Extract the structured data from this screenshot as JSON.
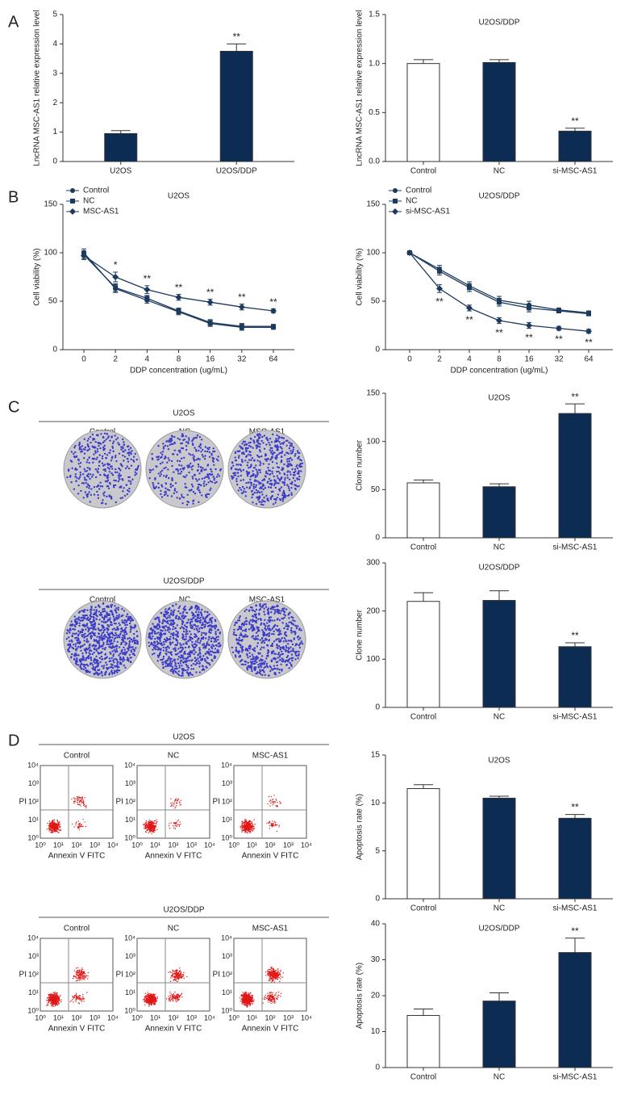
{
  "panel_labels": [
    "A",
    "B",
    "C",
    "D"
  ],
  "chart_data": [
    {
      "type": "bar",
      "y_label": "LncRNA MSC-AS1 relative expression level",
      "categories": [
        "U2OS",
        "U2OS/DDP"
      ],
      "values": [
        0.95,
        3.75
      ],
      "errors": [
        0.1,
        0.25
      ],
      "colors": [
        "#0d2c54",
        "#0d2c54"
      ],
      "significance": [
        null,
        "**"
      ],
      "ylim": [
        0,
        5
      ],
      "yticks": [
        0,
        1,
        2,
        3,
        4,
        5
      ]
    },
    {
      "type": "bar",
      "title": "U2OS/DDP",
      "y_label": "LncRNA MSC-AS1 relative expression level",
      "categories": [
        "Control",
        "NC",
        "si-MSC-AS1"
      ],
      "values": [
        1.0,
        1.01,
        0.31
      ],
      "errors": [
        0.04,
        0.03,
        0.03
      ],
      "colors": [
        "#ffffff",
        "#0d2c54",
        "#0d2c54"
      ],
      "significance": [
        null,
        null,
        "**"
      ],
      "ylim": [
        0,
        1.5
      ],
      "yticks": [
        {
          "value": 0,
          "label": "0.0"
        },
        0.5,
        {
          "value": 1,
          "label": "1.0"
        },
        1.5
      ]
    },
    {
      "type": "line",
      "title": "U2OS",
      "y_label": "Cell viability (%)",
      "x_label": "DDP concentration (ug/mL)",
      "categories": [
        "0",
        "2",
        "4",
        "8",
        "16",
        "32",
        "64"
      ],
      "legend": "upper left",
      "series": [
        {
          "name": "Control",
          "color": "#1b3a5e",
          "marker": "circle",
          "values": [
            100,
            63,
            51,
            39,
            27,
            23,
            23
          ],
          "errors": [
            4,
            4,
            3,
            3,
            3,
            3,
            2
          ]
        },
        {
          "name": "NC",
          "color": "#1b3a5e",
          "marker": "square",
          "values": [
            98,
            64,
            53,
            40,
            28,
            24,
            24
          ],
          "errors": [
            4,
            4,
            3,
            3,
            3,
            3,
            2
          ]
        },
        {
          "name": "MSC-AS1",
          "color": "#1b3a5e",
          "marker": "diamond",
          "values": [
            97,
            75,
            62,
            54,
            49,
            44,
            40
          ],
          "errors": [
            4,
            5,
            4,
            3,
            3,
            3,
            2
          ]
        }
      ],
      "significance": [
        null,
        "*",
        "**",
        "**",
        "**",
        "**",
        "**"
      ],
      "ylim": [
        0,
        150
      ],
      "yticks": [
        0,
        50,
        100,
        150
      ]
    },
    {
      "type": "line",
      "title": "U2OS/DDP",
      "y_label": "Cell viability (%)",
      "x_label": "DDP concentration (ug/mL)",
      "categories": [
        "0",
        "2",
        "4",
        "8",
        "16",
        "32",
        "64"
      ],
      "legend": "upper left",
      "series": [
        {
          "name": "Control",
          "color": "#1b3a5e",
          "marker": "circle",
          "values": [
            100,
            83,
            66,
            51,
            46,
            41,
            38
          ],
          "errors": [
            2,
            4,
            4,
            4,
            4,
            2,
            2
          ]
        },
        {
          "name": "NC",
          "color": "#1b3a5e",
          "marker": "square",
          "values": [
            100,
            81,
            64,
            49,
            43,
            40,
            37
          ],
          "errors": [
            2,
            4,
            4,
            4,
            4,
            2,
            2
          ]
        },
        {
          "name": "si-MSC-AS1",
          "color": "#1b3a5e",
          "marker": "diamond",
          "values": [
            100,
            63,
            43,
            30,
            25,
            22,
            19
          ],
          "errors": [
            2,
            4,
            3,
            3,
            3,
            2,
            2
          ]
        }
      ],
      "significance": [
        null,
        "**",
        "**",
        "**",
        "**",
        "**",
        "**"
      ],
      "ylim": [
        0,
        150
      ],
      "yticks": [
        0,
        50,
        100,
        150
      ]
    },
    {
      "type": "bar",
      "title": "U2OS",
      "y_label": "Clone number",
      "categories": [
        "Control",
        "NC",
        "si-MSC-AS1"
      ],
      "values": [
        57,
        53,
        129
      ],
      "errors": [
        3,
        3,
        10
      ],
      "colors": [
        "#ffffff",
        "#0d2c54",
        "#0d2c54"
      ],
      "significance": [
        null,
        null,
        "**"
      ],
      "ylim": [
        0,
        150
      ],
      "yticks": [
        0,
        50,
        100,
        150
      ]
    },
    {
      "type": "bar",
      "title": "U2OS/DDP",
      "y_label": "Clone number",
      "categories": [
        "Control",
        "NC",
        "si-MSC-AS1"
      ],
      "values": [
        220,
        222,
        126
      ],
      "errors": [
        18,
        20,
        8
      ],
      "colors": [
        "#ffffff",
        "#0d2c54",
        "#0d2c54"
      ],
      "significance": [
        null,
        null,
        "**"
      ],
      "ylim": [
        0,
        300
      ],
      "yticks": [
        0,
        100,
        200,
        300
      ]
    },
    {
      "type": "bar",
      "title": "U2OS",
      "y_label": "Apoptosis rate (%)",
      "categories": [
        "Control",
        "NC",
        "si-MSC-AS1"
      ],
      "values": [
        11.5,
        10.5,
        8.4
      ],
      "errors": [
        0.4,
        0.2,
        0.4
      ],
      "colors": [
        "#ffffff",
        "#0d2c54",
        "#0d2c54"
      ],
      "significance": [
        null,
        null,
        "**"
      ],
      "ylim": [
        0,
        15
      ],
      "yticks": [
        0,
        5,
        10,
        15
      ]
    },
    {
      "type": "bar",
      "title": "U2OS/DDP",
      "y_label": "Apoptosis rate (%)",
      "categories": [
        "Control",
        "NC",
        "si-MSC-AS1"
      ],
      "values": [
        14.5,
        18.5,
        32
      ],
      "errors": [
        1.8,
        2.3,
        4
      ],
      "colors": [
        "#ffffff",
        "#0d2c54",
        "#0d2c54"
      ],
      "significance": [
        null,
        null,
        "**"
      ],
      "ylim": [
        0,
        40
      ],
      "yticks": [
        0,
        10,
        20,
        30,
        40
      ]
    }
  ],
  "plates": [
    {
      "title": "U2OS",
      "labels": [
        "Control",
        "NC",
        "MSC-AS1"
      ]
    },
    {
      "title": "U2OS/DDP",
      "labels": [
        "Control",
        "NC",
        "MSC-AS1"
      ]
    }
  ],
  "flow": {
    "y_label": "PI",
    "x_label": "Annexin V FITC",
    "ticks": [
      "10⁰",
      "10¹",
      "10²",
      "10³",
      "10⁴"
    ],
    "groups": [
      {
        "title": "U2OS",
        "labels": [
          "Control",
          "NC",
          "MSC-AS1"
        ]
      },
      {
        "title": "U2OS/DDP",
        "labels": [
          "Control",
          "NC",
          "MSC-AS1"
        ]
      }
    ]
  }
}
